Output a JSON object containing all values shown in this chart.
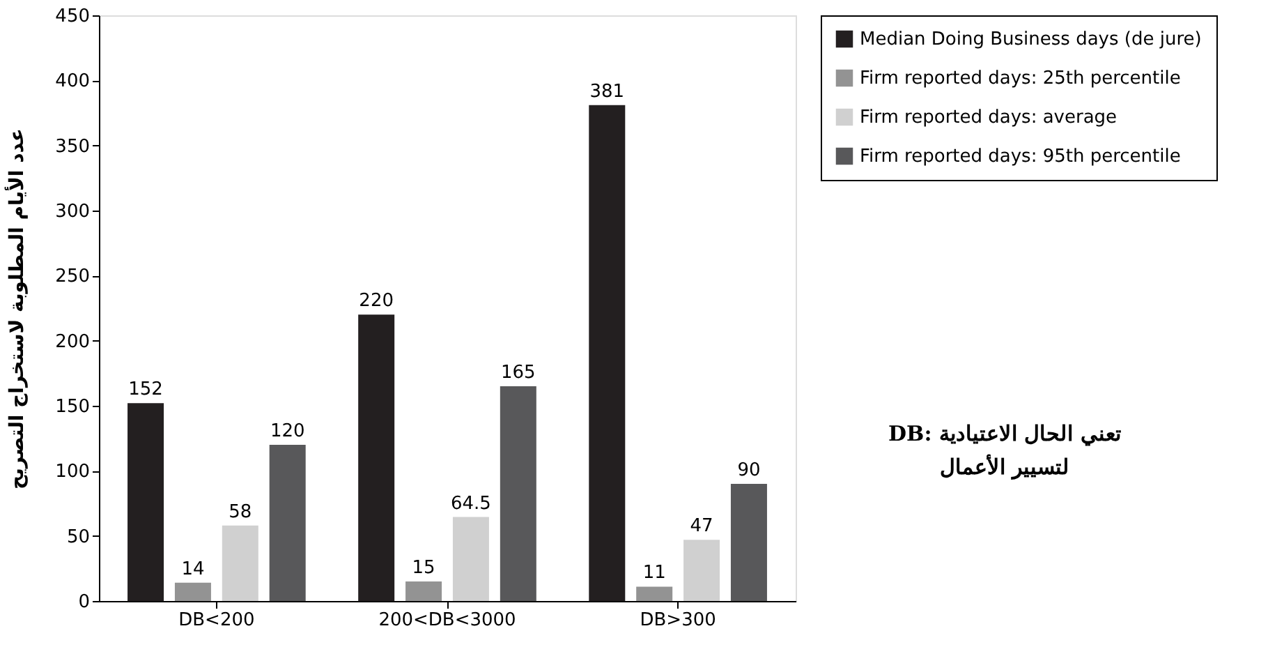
{
  "chart_data": {
    "type": "bar",
    "ylabel": "عدد الأيام المطلوبة لاستخراج التصريح",
    "categories": [
      "DB<200",
      "200<DB<3000",
      "DB>300"
    ],
    "series": [
      {
        "name": "Median Doing Business days (de jure)",
        "color": "#231f20",
        "values": [
          152,
          220,
          381
        ]
      },
      {
        "name": "Firm reported days: 25th percentile",
        "color": "#939393",
        "values": [
          14,
          15,
          11
        ]
      },
      {
        "name": "Firm reported days: average",
        "color": "#d0d0d0",
        "values": [
          58,
          64.5,
          47
        ]
      },
      {
        "name": "Firm reported days: 95th percentile",
        "color": "#58585a",
        "values": [
          120,
          165,
          90
        ]
      }
    ],
    "ylim": [
      0,
      450
    ],
    "yticks": [
      0,
      50,
      100,
      150,
      200,
      250,
      300,
      350,
      400,
      450
    ],
    "grid": false,
    "legend": "right",
    "data_labels": true,
    "annotations": [
      "DB: تعني الحال الاعتيادية لتسيير الأعمال"
    ]
  }
}
